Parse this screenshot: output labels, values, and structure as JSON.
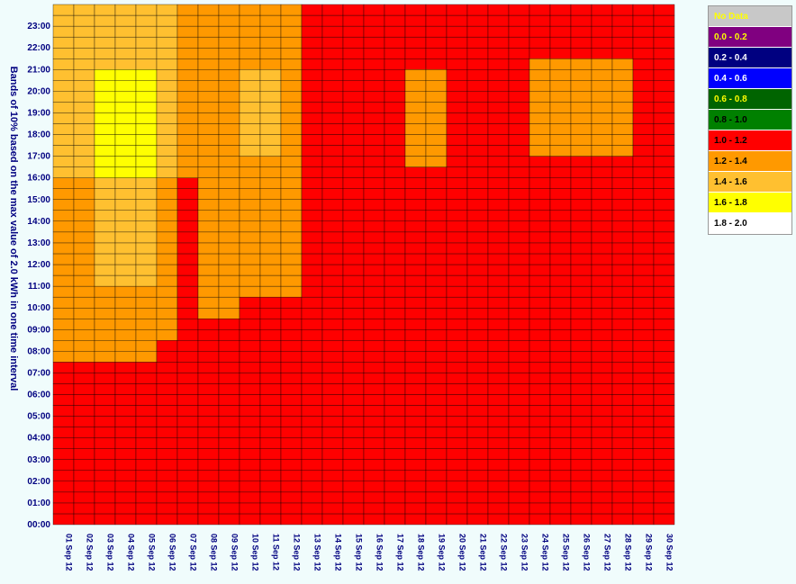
{
  "chart_data": {
    "type": "heatmap",
    "y_axis_title": "Bands of 10% based on the max value of 2.0 kWh in one time interval",
    "x_categories": [
      "01 Sep 12",
      "02 Sep 12",
      "03 Sep 12",
      "04 Sep 12",
      "05 Sep 12",
      "06 Sep 12",
      "07 Sep 12",
      "08 Sep 12",
      "09 Sep 12",
      "10 Sep 12",
      "11 Sep 12",
      "12 Sep 12",
      "13 Sep 12",
      "14 Sep 12",
      "15 Sep 12",
      "16 Sep 12",
      "17 Sep 12",
      "18 Sep 12",
      "19 Sep 12",
      "20 Sep 12",
      "21 Sep 12",
      "22 Sep 12",
      "23 Sep 12",
      "24 Sep 12",
      "25 Sep 12",
      "26 Sep 12",
      "27 Sep 12",
      "28 Sep 12",
      "29 Sep 12",
      "30 Sep 12"
    ],
    "y_ticks": [
      "00:00",
      "01:00",
      "02:00",
      "03:00",
      "04:00",
      "05:00",
      "06:00",
      "07:00",
      "08:00",
      "09:00",
      "10:00",
      "11:00",
      "12:00",
      "13:00",
      "14:00",
      "15:00",
      "16:00",
      "17:00",
      "18:00",
      "19:00",
      "20:00",
      "21:00",
      "22:00",
      "23:00"
    ],
    "interval_minutes": 30,
    "legend": [
      {
        "label": "No Data",
        "color": "#c8c8c8",
        "text_color": "#ffff00"
      },
      {
        "label": "0.0 - 0.2",
        "color": "#800080",
        "text_color": "#ffff00"
      },
      {
        "label": "0.2 - 0.4",
        "color": "#000080",
        "text_color": "#ffffff"
      },
      {
        "label": "0.4 - 0.6",
        "color": "#0000ff",
        "text_color": "#ffffff"
      },
      {
        "label": "0.6 - 0.8",
        "color": "#006400",
        "text_color": "#ffff00"
      },
      {
        "label": "0.8 - 1.0",
        "color": "#008000",
        "text_color": "#000000"
      },
      {
        "label": "1.0 - 1.2",
        "color": "#ff0000",
        "text_color": "#000000"
      },
      {
        "label": "1.2 - 1.4",
        "color": "#ff9900",
        "text_color": "#000000"
      },
      {
        "label": "1.4 - 1.6",
        "color": "#ffc030",
        "text_color": "#000000"
      },
      {
        "label": "1.6 - 1.8",
        "color": "#ffff00",
        "text_color": "#000000"
      },
      {
        "label": "1.8 - 2.0",
        "color": "#ffffff",
        "text_color": "#000000"
      }
    ],
    "profiles": [
      [
        6,
        6,
        6,
        6,
        6,
        6,
        6,
        6,
        6,
        6,
        6,
        6,
        6,
        6,
        6,
        7,
        7,
        7,
        7,
        7,
        7,
        7,
        7,
        7,
        7,
        7,
        7,
        7,
        7,
        7,
        7,
        7,
        8,
        8,
        8,
        8,
        8,
        8,
        8,
        8,
        8,
        8,
        8,
        8,
        8,
        8,
        8,
        8
      ],
      [
        6,
        6,
        6,
        6,
        6,
        6,
        6,
        6,
        6,
        6,
        6,
        6,
        6,
        6,
        6,
        7,
        7,
        7,
        7,
        7,
        7,
        7,
        7,
        7,
        7,
        7,
        7,
        7,
        7,
        7,
        7,
        7,
        8,
        8,
        8,
        8,
        8,
        8,
        8,
        8,
        8,
        8,
        8,
        8,
        8,
        8,
        8,
        8
      ],
      [
        6,
        6,
        6,
        6,
        6,
        6,
        6,
        6,
        6,
        6,
        6,
        6,
        6,
        6,
        6,
        7,
        7,
        7,
        7,
        7,
        7,
        7,
        8,
        8,
        8,
        8,
        8,
        8,
        8,
        8,
        8,
        8,
        9,
        9,
        9,
        9,
        9,
        9,
        9,
        9,
        9,
        9,
        8,
        8,
        8,
        8,
        8,
        8
      ],
      [
        6,
        6,
        6,
        6,
        6,
        6,
        6,
        6,
        6,
        6,
        6,
        6,
        6,
        6,
        6,
        7,
        7,
        7,
        7,
        7,
        7,
        7,
        8,
        8,
        8,
        8,
        8,
        8,
        8,
        8,
        8,
        8,
        9,
        9,
        9,
        9,
        9,
        9,
        9,
        9,
        9,
        9,
        8,
        8,
        8,
        8,
        8,
        8
      ],
      [
        6,
        6,
        6,
        6,
        6,
        6,
        6,
        6,
        6,
        6,
        6,
        6,
        6,
        6,
        6,
        7,
        7,
        7,
        7,
        7,
        7,
        7,
        8,
        8,
        8,
        8,
        8,
        8,
        8,
        8,
        8,
        8,
        9,
        9,
        9,
        9,
        9,
        9,
        9,
        9,
        9,
        9,
        8,
        8,
        8,
        8,
        8,
        8
      ],
      [
        6,
        6,
        6,
        6,
        6,
        6,
        6,
        6,
        6,
        6,
        6,
        6,
        6,
        6,
        6,
        6,
        6,
        7,
        7,
        7,
        7,
        7,
        7,
        7,
        7,
        7,
        7,
        7,
        7,
        7,
        7,
        7,
        8,
        8,
        8,
        8,
        8,
        8,
        8,
        8,
        8,
        8,
        8,
        8,
        8,
        8,
        8,
        8
      ],
      [
        6,
        6,
        6,
        6,
        6,
        6,
        6,
        6,
        6,
        6,
        6,
        6,
        6,
        6,
        6,
        6,
        6,
        6,
        6,
        6,
        6,
        6,
        6,
        6,
        6,
        6,
        6,
        6,
        6,
        6,
        6,
        6,
        7,
        7,
        7,
        7,
        7,
        7,
        7,
        7,
        7,
        7,
        7,
        7,
        7,
        7,
        7,
        7
      ],
      [
        6,
        6,
        6,
        6,
        6,
        6,
        6,
        6,
        6,
        6,
        6,
        6,
        6,
        6,
        6,
        6,
        6,
        6,
        6,
        7,
        7,
        7,
        7,
        7,
        7,
        7,
        7,
        7,
        7,
        7,
        7,
        7,
        7,
        7,
        7,
        7,
        7,
        7,
        7,
        7,
        7,
        7,
        7,
        7,
        7,
        7,
        7,
        7
      ],
      [
        6,
        6,
        6,
        6,
        6,
        6,
        6,
        6,
        6,
        6,
        6,
        6,
        6,
        6,
        6,
        6,
        6,
        6,
        6,
        7,
        7,
        7,
        7,
        7,
        7,
        7,
        7,
        7,
        7,
        7,
        7,
        7,
        7,
        7,
        7,
        7,
        7,
        7,
        7,
        7,
        7,
        7,
        7,
        7,
        7,
        7,
        7,
        7
      ],
      [
        6,
        6,
        6,
        6,
        6,
        6,
        6,
        6,
        6,
        6,
        6,
        6,
        6,
        6,
        6,
        6,
        6,
        6,
        6,
        6,
        6,
        7,
        7,
        7,
        7,
        7,
        7,
        7,
        7,
        7,
        7,
        7,
        7,
        7,
        8,
        8,
        8,
        8,
        8,
        8,
        8,
        8,
        7,
        7,
        7,
        7,
        7,
        7
      ],
      [
        6,
        6,
        6,
        6,
        6,
        6,
        6,
        6,
        6,
        6,
        6,
        6,
        6,
        6,
        6,
        6,
        6,
        6,
        6,
        6,
        6,
        7,
        7,
        7,
        7,
        7,
        7,
        7,
        7,
        7,
        7,
        7,
        7,
        7,
        8,
        8,
        8,
        8,
        8,
        8,
        8,
        8,
        7,
        7,
        7,
        7,
        7,
        7
      ],
      [
        6,
        6,
        6,
        6,
        6,
        6,
        6,
        6,
        6,
        6,
        6,
        6,
        6,
        6,
        6,
        6,
        6,
        6,
        6,
        6,
        6,
        7,
        7,
        7,
        7,
        7,
        7,
        7,
        7,
        7,
        7,
        7,
        7,
        7,
        7,
        7,
        7,
        7,
        7,
        7,
        7,
        7,
        7,
        7,
        7,
        7,
        7,
        7
      ],
      [
        6,
        6,
        6,
        6,
        6,
        6,
        6,
        6,
        6,
        6,
        6,
        6,
        6,
        6,
        6,
        6,
        6,
        6,
        6,
        6,
        6,
        6,
        6,
        6,
        6,
        6,
        6,
        6,
        6,
        6,
        6,
        6,
        6,
        6,
        6,
        6,
        6,
        6,
        6,
        6,
        6,
        6,
        6,
        6,
        6,
        6,
        6,
        6
      ],
      [
        6,
        6,
        6,
        6,
        6,
        6,
        6,
        6,
        6,
        6,
        6,
        6,
        6,
        6,
        6,
        6,
        6,
        6,
        6,
        6,
        6,
        6,
        6,
        6,
        6,
        6,
        6,
        6,
        6,
        6,
        6,
        6,
        6,
        6,
        6,
        6,
        6,
        6,
        6,
        6,
        6,
        6,
        6,
        6,
        6,
        6,
        6,
        6
      ],
      [
        6,
        6,
        6,
        6,
        6,
        6,
        6,
        6,
        6,
        6,
        6,
        6,
        6,
        6,
        6,
        6,
        6,
        6,
        6,
        6,
        6,
        6,
        6,
        6,
        6,
        6,
        6,
        6,
        6,
        6,
        6,
        6,
        6,
        6,
        6,
        6,
        6,
        6,
        6,
        6,
        6,
        6,
        6,
        6,
        6,
        6,
        6,
        6
      ],
      [
        6,
        6,
        6,
        6,
        6,
        6,
        6,
        6,
        6,
        6,
        6,
        6,
        6,
        6,
        6,
        6,
        6,
        6,
        6,
        6,
        6,
        6,
        6,
        6,
        6,
        6,
        6,
        6,
        6,
        6,
        6,
        6,
        6,
        6,
        6,
        6,
        6,
        6,
        6,
        6,
        6,
        6,
        6,
        6,
        6,
        6,
        6,
        6
      ],
      [
        6,
        6,
        6,
        6,
        6,
        6,
        6,
        6,
        6,
        6,
        6,
        6,
        6,
        6,
        6,
        6,
        6,
        6,
        6,
        6,
        6,
        6,
        6,
        6,
        6,
        6,
        6,
        6,
        6,
        6,
        6,
        6,
        6,
        6,
        6,
        6,
        6,
        6,
        6,
        6,
        6,
        6,
        6,
        6,
        6,
        6,
        6,
        6
      ],
      [
        6,
        6,
        6,
        6,
        6,
        6,
        6,
        6,
        6,
        6,
        6,
        6,
        6,
        6,
        6,
        6,
        6,
        6,
        6,
        6,
        6,
        6,
        6,
        6,
        6,
        6,
        6,
        6,
        6,
        6,
        6,
        6,
        6,
        7,
        7,
        7,
        7,
        7,
        7,
        7,
        7,
        7,
        6,
        6,
        6,
        6,
        6,
        6
      ],
      [
        6,
        6,
        6,
        6,
        6,
        6,
        6,
        6,
        6,
        6,
        6,
        6,
        6,
        6,
        6,
        6,
        6,
        6,
        6,
        6,
        6,
        6,
        6,
        6,
        6,
        6,
        6,
        6,
        6,
        6,
        6,
        6,
        6,
        7,
        7,
        7,
        7,
        7,
        7,
        7,
        7,
        7,
        6,
        6,
        6,
        6,
        6,
        6
      ],
      [
        6,
        6,
        6,
        6,
        6,
        6,
        6,
        6,
        6,
        6,
        6,
        6,
        6,
        6,
        6,
        6,
        6,
        6,
        6,
        6,
        6,
        6,
        6,
        6,
        6,
        6,
        6,
        6,
        6,
        6,
        6,
        6,
        6,
        6,
        6,
        6,
        6,
        6,
        6,
        6,
        6,
        6,
        6,
        6,
        6,
        6,
        6,
        6
      ],
      [
        6,
        6,
        6,
        6,
        6,
        6,
        6,
        6,
        6,
        6,
        6,
        6,
        6,
        6,
        6,
        6,
        6,
        6,
        6,
        6,
        6,
        6,
        6,
        6,
        6,
        6,
        6,
        6,
        6,
        6,
        6,
        6,
        6,
        6,
        6,
        6,
        6,
        6,
        6,
        6,
        6,
        6,
        6,
        6,
        6,
        6,
        6,
        6
      ],
      [
        6,
        6,
        6,
        6,
        6,
        6,
        6,
        6,
        6,
        6,
        6,
        6,
        6,
        6,
        6,
        6,
        6,
        6,
        6,
        6,
        6,
        6,
        6,
        6,
        6,
        6,
        6,
        6,
        6,
        6,
        6,
        6,
        6,
        6,
        6,
        6,
        6,
        6,
        6,
        6,
        6,
        6,
        6,
        6,
        6,
        6,
        6,
        6
      ],
      [
        6,
        6,
        6,
        6,
        6,
        6,
        6,
        6,
        6,
        6,
        6,
        6,
        6,
        6,
        6,
        6,
        6,
        6,
        6,
        6,
        6,
        6,
        6,
        6,
        6,
        6,
        6,
        6,
        6,
        6,
        6,
        6,
        6,
        6,
        6,
        6,
        6,
        6,
        6,
        6,
        6,
        6,
        6,
        6,
        6,
        6,
        6,
        6
      ],
      [
        6,
        6,
        6,
        6,
        6,
        6,
        6,
        6,
        6,
        6,
        6,
        6,
        6,
        6,
        6,
        6,
        6,
        6,
        6,
        6,
        6,
        6,
        6,
        6,
        6,
        6,
        6,
        6,
        6,
        6,
        6,
        6,
        6,
        6,
        7,
        7,
        7,
        7,
        7,
        7,
        7,
        7,
        7,
        6,
        6,
        6,
        6,
        6
      ],
      [
        6,
        6,
        6,
        6,
        6,
        6,
        6,
        6,
        6,
        6,
        6,
        6,
        6,
        6,
        6,
        6,
        6,
        6,
        6,
        6,
        6,
        6,
        6,
        6,
        6,
        6,
        6,
        6,
        6,
        6,
        6,
        6,
        6,
        6,
        7,
        7,
        7,
        7,
        7,
        7,
        7,
        7,
        7,
        6,
        6,
        6,
        6,
        6
      ],
      [
        6,
        6,
        6,
        6,
        6,
        6,
        6,
        6,
        6,
        6,
        6,
        6,
        6,
        6,
        6,
        6,
        6,
        6,
        6,
        6,
        6,
        6,
        6,
        6,
        6,
        6,
        6,
        6,
        6,
        6,
        6,
        6,
        6,
        6,
        7,
        7,
        7,
        7,
        7,
        7,
        7,
        7,
        7,
        6,
        6,
        6,
        6,
        6
      ],
      [
        6,
        6,
        6,
        6,
        6,
        6,
        6,
        6,
        6,
        6,
        6,
        6,
        6,
        6,
        6,
        6,
        6,
        6,
        6,
        6,
        6,
        6,
        6,
        6,
        6,
        6,
        6,
        6,
        6,
        6,
        6,
        6,
        6,
        6,
        7,
        7,
        7,
        7,
        7,
        7,
        7,
        7,
        7,
        6,
        6,
        6,
        6,
        6
      ],
      [
        6,
        6,
        6,
        6,
        6,
        6,
        6,
        6,
        6,
        6,
        6,
        6,
        6,
        6,
        6,
        6,
        6,
        6,
        6,
        6,
        6,
        6,
        6,
        6,
        6,
        6,
        6,
        6,
        6,
        6,
        6,
        6,
        6,
        6,
        7,
        7,
        7,
        7,
        7,
        7,
        7,
        7,
        7,
        6,
        6,
        6,
        6,
        6
      ],
      [
        6,
        6,
        6,
        6,
        6,
        6,
        6,
        6,
        6,
        6,
        6,
        6,
        6,
        6,
        6,
        6,
        6,
        6,
        6,
        6,
        6,
        6,
        6,
        6,
        6,
        6,
        6,
        6,
        6,
        6,
        6,
        6,
        6,
        6,
        6,
        6,
        6,
        6,
        6,
        6,
        6,
        6,
        6,
        6,
        6,
        6,
        6,
        6
      ],
      [
        6,
        6,
        6,
        6,
        6,
        6,
        6,
        6,
        6,
        6,
        6,
        6,
        6,
        6,
        6,
        6,
        6,
        6,
        6,
        6,
        6,
        6,
        6,
        6,
        6,
        6,
        6,
        6,
        6,
        6,
        6,
        6,
        6,
        6,
        6,
        6,
        6,
        6,
        6,
        6,
        6,
        6,
        6,
        6,
        6,
        6,
        6,
        6
      ]
    ]
  }
}
